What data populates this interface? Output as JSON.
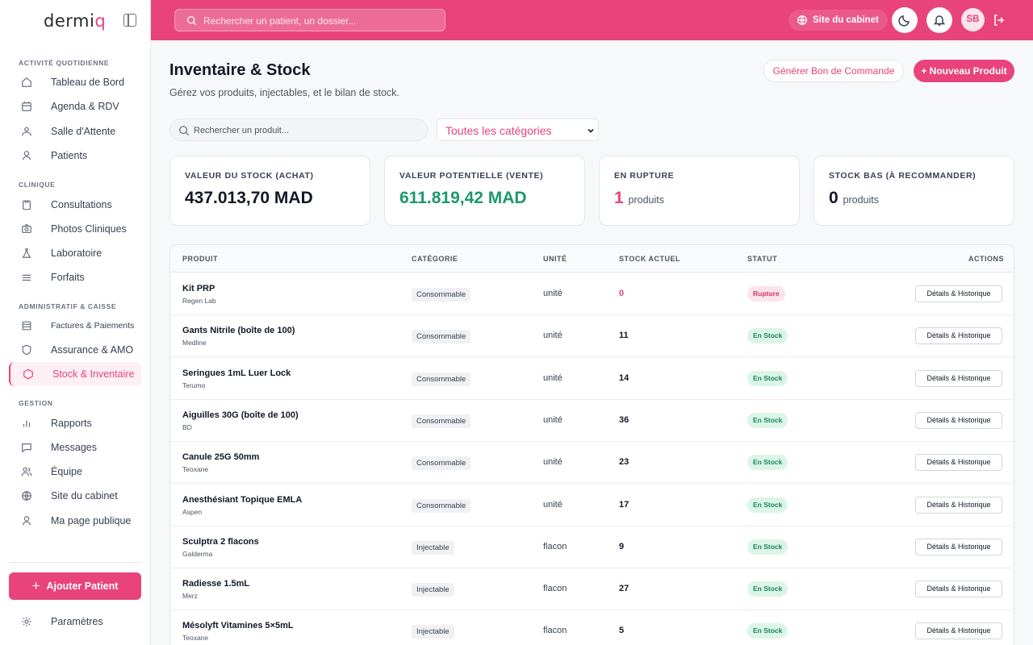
{
  "brand": {
    "logo_main": "derm",
    "logo_i": "i",
    "logo_q": "q"
  },
  "sidebar": {
    "sections": [
      {
        "title": "ACTIVITÉ QUOTIDIENNE"
      },
      {
        "title": "CLINIQUE"
      },
      {
        "title": "ADMINISTRATIF & CAISSE"
      },
      {
        "title": "GESTION"
      }
    ],
    "items": [
      {
        "label": "Tableau de Bord",
        "icon": "home-icon"
      },
      {
        "label": "Agenda & RDV",
        "icon": "calendar-icon"
      },
      {
        "label": "Salle d'Attente",
        "icon": "waiting-room-icon"
      },
      {
        "label": "Patients",
        "icon": "user-icon"
      },
      {
        "label": "Consultations",
        "icon": "clipboard-icon"
      },
      {
        "label": "Photos Cliniques",
        "icon": "camera-icon"
      },
      {
        "label": "Laboratoire",
        "icon": "flask-icon"
      },
      {
        "label": "Forfaits",
        "icon": "layers-icon"
      },
      {
        "label": "Factures & Paiements",
        "icon": "receipt-icon"
      },
      {
        "label": "Assurance & AMO",
        "icon": "shield-icon"
      },
      {
        "label": "Stock & Inventaire",
        "icon": "box-icon",
        "active": true
      },
      {
        "label": "Rapports",
        "icon": "bar-chart-icon"
      },
      {
        "label": "Messages",
        "icon": "message-icon"
      },
      {
        "label": "Équipe",
        "icon": "team-icon"
      },
      {
        "label": "Site du cabinet",
        "icon": "globe-icon"
      },
      {
        "label": "Ma page publique",
        "icon": "user-icon"
      }
    ],
    "add_patient_label": "Ajouter Patient",
    "settings_label": "Paramètres"
  },
  "topbar": {
    "search_placeholder": "Rechercher un patient, un dossier...",
    "site_label": "Site du cabinet",
    "avatar_initials": "SB"
  },
  "page": {
    "title": "Inventaire & Stock",
    "subtitle": "Gérez vos produits, injectables, et le bilan de stock.",
    "btn_order": "Générer Bon de Commande",
    "btn_new": "+ Nouveau Produit",
    "search_placeholder": "Rechercher un produit...",
    "category_selected": "Toutes les catégories"
  },
  "stats": [
    {
      "label": "VALEUR DU STOCK (ACHAT)",
      "value": "437.013,70 MAD",
      "unit": ""
    },
    {
      "label": "VALEUR POTENTIELLE (VENTE)",
      "value": "611.819,42 MAD",
      "unit": ""
    },
    {
      "label": "EN RUPTURE",
      "value": "1",
      "unit": "produits"
    },
    {
      "label": "STOCK BAS (À RECOMMANDER)",
      "value": "0",
      "unit": "produits"
    }
  ],
  "table": {
    "headers": [
      "PRODUIT",
      "CATÉGORIE",
      "UNITÉ",
      "STOCK ACTUEL",
      "STATUT",
      "ACTIONS"
    ],
    "action_label": "Détails & Historique",
    "rows": [
      {
        "name": "Kit PRP",
        "brand": "Regen Lab",
        "category": "Consommable",
        "unit": "unité",
        "stock": "0",
        "status": "Rupture"
      },
      {
        "name": "Gants Nitrile (boîte de 100)",
        "brand": "Medline",
        "category": "Consommable",
        "unit": "unité",
        "stock": "11",
        "status": "En Stock"
      },
      {
        "name": "Seringues 1mL Luer Lock",
        "brand": "Terumo",
        "category": "Consommable",
        "unit": "unité",
        "stock": "14",
        "status": "En Stock"
      },
      {
        "name": "Aiguilles 30G (boîte de 100)",
        "brand": "BD",
        "category": "Consommable",
        "unit": "unité",
        "stock": "36",
        "status": "En Stock"
      },
      {
        "name": "Canule 25G 50mm",
        "brand": "Teoxane",
        "category": "Consommable",
        "unit": "unité",
        "stock": "23",
        "status": "En Stock"
      },
      {
        "name": "Anesthésiant Topique EMLA",
        "brand": "Aspen",
        "category": "Consommable",
        "unit": "unité",
        "stock": "17",
        "status": "En Stock"
      },
      {
        "name": "Sculptra 2 flacons",
        "brand": "Galderma",
        "category": "Injectable",
        "unit": "flacon",
        "stock": "9",
        "status": "En Stock"
      },
      {
        "name": "Radiesse 1.5mL",
        "brand": "Merz",
        "category": "Injectable",
        "unit": "flacon",
        "stock": "27",
        "status": "En Stock"
      },
      {
        "name": "Mésolyft Vitamines 5×5mL",
        "brand": "Teoxane",
        "category": "Injectable",
        "unit": "flacon",
        "stock": "5",
        "status": "En Stock"
      }
    ]
  },
  "colors": {
    "accent": "#e8437a",
    "success": "#16875a",
    "success_bg": "#dcf5e7",
    "danger_bg": "#fde4ec"
  }
}
